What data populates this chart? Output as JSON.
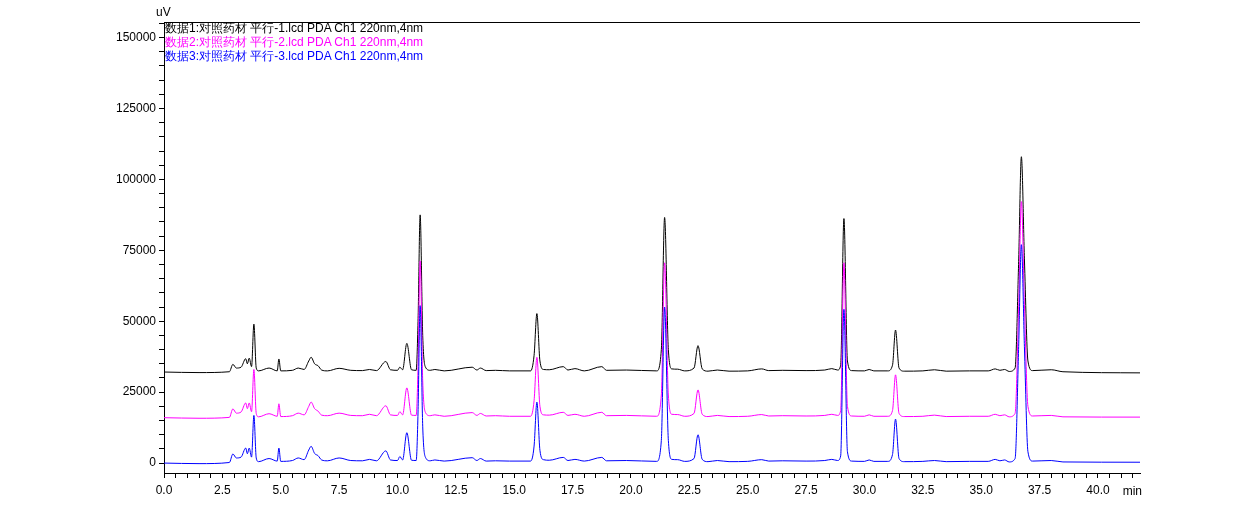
{
  "chart_data": {
    "type": "line",
    "xlabel": "min",
    "ylabel": "uV",
    "legend": "top left",
    "xlim": [
      0,
      41.8
    ],
    "ylim": [
      -3500,
      155500
    ],
    "xticks": [
      {
        "value": 0,
        "label": "0.0"
      },
      {
        "value": 0.5,
        "label": null
      },
      {
        "value": 1,
        "label": null
      },
      {
        "value": 1.5,
        "label": null
      },
      {
        "value": 2,
        "label": null
      },
      {
        "value": 2.5,
        "label": "2.5"
      },
      {
        "value": 3,
        "label": null
      },
      {
        "value": 3.5,
        "label": null
      },
      {
        "value": 4,
        "label": null
      },
      {
        "value": 4.5,
        "label": null
      },
      {
        "value": 5,
        "label": "5.0"
      },
      {
        "value": 5.5,
        "label": null
      },
      {
        "value": 6,
        "label": null
      },
      {
        "value": 6.5,
        "label": null
      },
      {
        "value": 7,
        "label": null
      },
      {
        "value": 7.5,
        "label": "7.5"
      },
      {
        "value": 8,
        "label": null
      },
      {
        "value": 8.5,
        "label": null
      },
      {
        "value": 9,
        "label": null
      },
      {
        "value": 9.5,
        "label": null
      },
      {
        "value": 10,
        "label": "10.0"
      },
      {
        "value": 10.5,
        "label": null
      },
      {
        "value": 11,
        "label": null
      },
      {
        "value": 11.5,
        "label": null
      },
      {
        "value": 12,
        "label": null
      },
      {
        "value": 12.5,
        "label": "12.5"
      },
      {
        "value": 13,
        "label": null
      },
      {
        "value": 13.5,
        "label": null
      },
      {
        "value": 14,
        "label": null
      },
      {
        "value": 14.5,
        "label": null
      },
      {
        "value": 15,
        "label": "15.0"
      },
      {
        "value": 15.5,
        "label": null
      },
      {
        "value": 16,
        "label": null
      },
      {
        "value": 16.5,
        "label": null
      },
      {
        "value": 17,
        "label": null
      },
      {
        "value": 17.5,
        "label": "17.5"
      },
      {
        "value": 18,
        "label": null
      },
      {
        "value": 18.5,
        "label": null
      },
      {
        "value": 19,
        "label": null
      },
      {
        "value": 19.5,
        "label": null
      },
      {
        "value": 20,
        "label": "20.0"
      },
      {
        "value": 20.5,
        "label": null
      },
      {
        "value": 21,
        "label": null
      },
      {
        "value": 21.5,
        "label": null
      },
      {
        "value": 22,
        "label": null
      },
      {
        "value": 22.5,
        "label": "22.5"
      },
      {
        "value": 23,
        "label": null
      },
      {
        "value": 23.5,
        "label": null
      },
      {
        "value": 24,
        "label": null
      },
      {
        "value": 24.5,
        "label": null
      },
      {
        "value": 25,
        "label": "25.0"
      },
      {
        "value": 25.5,
        "label": null
      },
      {
        "value": 26,
        "label": null
      },
      {
        "value": 26.5,
        "label": null
      },
      {
        "value": 27,
        "label": null
      },
      {
        "value": 27.5,
        "label": "27.5"
      },
      {
        "value": 28,
        "label": null
      },
      {
        "value": 28.5,
        "label": null
      },
      {
        "value": 29,
        "label": null
      },
      {
        "value": 29.5,
        "label": null
      },
      {
        "value": 30,
        "label": "30.0"
      },
      {
        "value": 30.5,
        "label": null
      },
      {
        "value": 31,
        "label": null
      },
      {
        "value": 31.5,
        "label": null
      },
      {
        "value": 32,
        "label": null
      },
      {
        "value": 32.5,
        "label": "32.5"
      },
      {
        "value": 33,
        "label": null
      },
      {
        "value": 33.5,
        "label": null
      },
      {
        "value": 34,
        "label": null
      },
      {
        "value": 34.5,
        "label": null
      },
      {
        "value": 35,
        "label": "35.0"
      },
      {
        "value": 35.5,
        "label": null
      },
      {
        "value": 36,
        "label": null
      },
      {
        "value": 36.5,
        "label": null
      },
      {
        "value": 37,
        "label": null
      },
      {
        "value": 37.5,
        "label": "37.5"
      },
      {
        "value": 38,
        "label": null
      },
      {
        "value": 38.5,
        "label": null
      },
      {
        "value": 39,
        "label": null
      },
      {
        "value": 39.5,
        "label": null
      },
      {
        "value": 40,
        "label": "40.0"
      },
      {
        "value": 40.5,
        "label": null
      },
      {
        "value": 41,
        "label": null
      },
      {
        "value": 41.5,
        "label": null
      }
    ],
    "yticks": [
      0,
      {
        "value": 5000,
        "label": null
      },
      {
        "value": 10000,
        "label": null
      },
      {
        "value": 15000,
        "label": null
      },
      {
        "value": 20000,
        "label": null
      },
      25000,
      {
        "value": 30000,
        "label": null
      },
      {
        "value": 35000,
        "label": null
      },
      {
        "value": 40000,
        "label": null
      },
      {
        "value": 45000,
        "label": null
      },
      50000,
      {
        "value": 55000,
        "label": null
      },
      {
        "value": 60000,
        "label": null
      },
      {
        "value": 65000,
        "label": null
      },
      {
        "value": 70000,
        "label": null
      },
      75000,
      {
        "value": 80000,
        "label": null
      },
      {
        "value": 85000,
        "label": null
      },
      {
        "value": 90000,
        "label": null
      },
      {
        "value": 95000,
        "label": null
      },
      100000,
      {
        "value": 105000,
        "label": null
      },
      {
        "value": 110000,
        "label": null
      },
      {
        "value": 115000,
        "label": null
      },
      {
        "value": 120000,
        "label": null
      },
      125000,
      {
        "value": 130000,
        "label": null
      },
      {
        "value": 135000,
        "label": null
      },
      {
        "value": 140000,
        "label": null
      },
      {
        "value": 145000,
        "label": null
      },
      150000,
      {
        "value": 155000,
        "label": null
      }
    ],
    "x": [
      0,
      1.5,
      2.8,
      2.95,
      3.1,
      3.3,
      3.5,
      3.57,
      3.65,
      3.75,
      3.85,
      3.95,
      4.05,
      4.5,
      4.85,
      4.92,
      5,
      5.5,
      5.75,
      6,
      6.2,
      6.3,
      6.45,
      6.6,
      6.75,
      7,
      7.5,
      8,
      8.5,
      8.8,
      9.1,
      9.5,
      9.7,
      10,
      10.1,
      10.22,
      10.4,
      10.6,
      10.8,
      10.88,
      10.97,
      11.08,
      11.2,
      11.4,
      11.6,
      12,
      13.2,
      13.4,
      13.55,
      13.8,
      14.2,
      14.8,
      15.7,
      15.85,
      15.97,
      16.1,
      16.25,
      16.5,
      17.1,
      17.3,
      17.6,
      18,
      18.75,
      18.95,
      19.8,
      21.1,
      21.3,
      21.44,
      21.6,
      21.75,
      22,
      22.3,
      22.7,
      22.87,
      23.05,
      23.3,
      23.7,
      24.2,
      25,
      25.6,
      25.9,
      26.5,
      27.5,
      28.3,
      28.6,
      28.85,
      28.98,
      29.12,
      29.27,
      29.45,
      30,
      30.2,
      30.4,
      31,
      31.2,
      31.33,
      31.48,
      31.7,
      32.5,
      33,
      33.5,
      34.5,
      35.3,
      35.6,
      35.8,
      36,
      36.2,
      36.45,
      36.6,
      36.72,
      36.85,
      37,
      37.2,
      38,
      38.5,
      41.8
    ],
    "series": [
      {
        "name": "数据1:对照药材 平行-1.lcd PDA Ch1 220nm,4nm",
        "color": "#000000",
        "values": [
          32100,
          31900,
          32200,
          34800,
          33500,
          33800,
          36800,
          35000,
          37000,
          34000,
          49000,
          33500,
          32500,
          33500,
          32500,
          36700,
          32500,
          32700,
          33500,
          33000,
          36000,
          37300,
          35000,
          34300,
          32800,
          32500,
          33400,
          32700,
          32600,
          33000,
          32600,
          35800,
          32900,
          32700,
          33800,
          32900,
          42200,
          32900,
          32700,
          50000,
          87500,
          45000,
          33800,
          32700,
          33000,
          32500,
          33800,
          32800,
          33500,
          32600,
          32700,
          32500,
          32500,
          38000,
          52700,
          36000,
          33000,
          32900,
          34000,
          32800,
          33300,
          32500,
          34000,
          32700,
          32800,
          32500,
          40000,
          86600,
          40000,
          33200,
          33100,
          32500,
          33500,
          41400,
          33200,
          32400,
          32800,
          32400,
          32500,
          33200,
          32600,
          32700,
          32600,
          32800,
          33300,
          32800,
          34500,
          86200,
          36000,
          32600,
          32500,
          33000,
          32500,
          32500,
          34500,
          46900,
          33500,
          32400,
          32500,
          32900,
          32400,
          32500,
          32500,
          33200,
          32700,
          33000,
          32300,
          33500,
          70000,
          108000,
          72000,
          36000,
          32600,
          32900,
          32200,
          31800
        ]
      },
      {
        "name": "数据2:对照药材 平行-2.lcd PDA Ch1 220nm,4nm",
        "color": "#ff00ff",
        "values": [
          16000,
          15800,
          16100,
          19100,
          17600,
          18000,
          21200,
          19200,
          21200,
          18100,
          33000,
          17500,
          16300,
          17400,
          16500,
          20900,
          16400,
          16700,
          17600,
          17000,
          20000,
          21500,
          19200,
          18300,
          16900,
          16700,
          17600,
          16800,
          16700,
          17200,
          16700,
          20200,
          17000,
          16800,
          18100,
          17000,
          26500,
          16900,
          16800,
          34000,
          71300,
          29000,
          17800,
          16700,
          17000,
          16500,
          17800,
          16800,
          17500,
          16600,
          16700,
          16500,
          16500,
          22000,
          37300,
          20000,
          17000,
          16900,
          17900,
          16800,
          17200,
          16500,
          17900,
          16700,
          16800,
          16500,
          24000,
          70600,
          24000,
          17200,
          17100,
          16500,
          17500,
          25800,
          17200,
          16400,
          16800,
          16400,
          16500,
          17100,
          16600,
          16700,
          16600,
          16800,
          17200,
          16800,
          18500,
          70600,
          20000,
          16600,
          16500,
          17000,
          16500,
          16500,
          18500,
          31100,
          17500,
          16400,
          16500,
          16900,
          16400,
          16500,
          16500,
          17200,
          16700,
          17000,
          16300,
          17500,
          54000,
          92200,
          56000,
          20000,
          16600,
          16800,
          16300,
          16200
        ]
      },
      {
        "name": "数据3:对照药材 平行-3.lcd PDA Ch1 220nm,4nm",
        "color": "#0000ff",
        "values": [
          0,
          -200,
          200,
          3200,
          1800,
          2100,
          5300,
          3300,
          5300,
          2100,
          16800,
          1800,
          500,
          1600,
          700,
          5300,
          600,
          900,
          1800,
          1200,
          4600,
          5900,
          3400,
          2600,
          1100,
          800,
          1800,
          900,
          800,
          1300,
          800,
          4300,
          1100,
          900,
          2300,
          1100,
          10700,
          1000,
          900,
          18000,
          55500,
          13000,
          2000,
          800,
          1100,
          700,
          1900,
          900,
          1600,
          700,
          800,
          700,
          700,
          6000,
          21500,
          4500,
          1200,
          1000,
          2000,
          900,
          1300,
          700,
          2000,
          800,
          900,
          600,
          8000,
          55000,
          8000,
          1300,
          1200,
          600,
          1600,
          10000,
          1300,
          500,
          900,
          500,
          600,
          1200,
          700,
          800,
          700,
          900,
          1300,
          900,
          2500,
          54200,
          4000,
          700,
          600,
          1100,
          600,
          600,
          3000,
          15500,
          1600,
          500,
          600,
          900,
          500,
          600,
          600,
          1300,
          800,
          1100,
          400,
          1600,
          40000,
          77000,
          41000,
          4000,
          700,
          900,
          400,
          300
        ]
      }
    ]
  }
}
